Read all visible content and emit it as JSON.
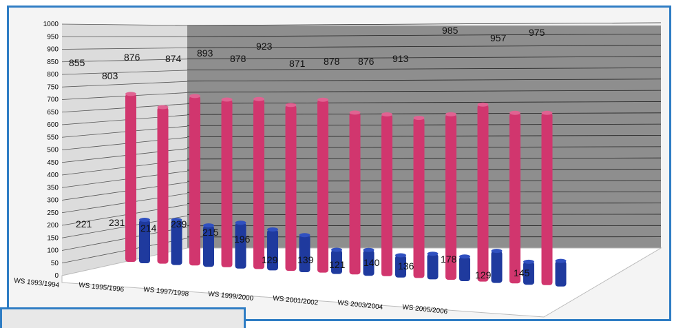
{
  "chart_data": {
    "type": "bar",
    "title": "",
    "xlabel": "",
    "ylabel": "",
    "ylim": [
      0,
      1000
    ],
    "yticks": [
      0,
      50,
      100,
      150,
      200,
      250,
      300,
      350,
      400,
      450,
      500,
      550,
      600,
      650,
      700,
      750,
      800,
      850,
      900,
      950,
      1000
    ],
    "categories": [
      "WS 1993/1994",
      "",
      "WS 1995/1996",
      "",
      "WS 1997/1998",
      "",
      "WS 1999/2000",
      "",
      "WS 2001/2002",
      "",
      "WS 2003/2004",
      "",
      "WS 2005/2006",
      ""
    ],
    "series": [
      {
        "name": "",
        "color": "#d1366e",
        "values": [
          855,
          803,
          876,
          874,
          893,
          878,
          923,
          871,
          878,
          876,
          913,
          985,
          957,
          975
        ],
        "labels": [
          "855",
          "803",
          "876",
          "874",
          "893",
          "878",
          "923",
          "871",
          "878",
          "876",
          "913",
          "985",
          "957",
          "975"
        ]
      },
      {
        "name": "",
        "color": "#1f3a9e",
        "values": [
          221,
          231,
          214,
          239,
          215,
          196,
          129,
          139,
          121,
          140,
          136,
          178,
          129,
          145
        ],
        "labels": [
          "221",
          "231",
          "214",
          "239",
          "215",
          "196",
          "129",
          "139",
          "121",
          "140",
          "136",
          "178",
          "129",
          "145"
        ]
      }
    ],
    "grid": true,
    "legend": "none"
  }
}
